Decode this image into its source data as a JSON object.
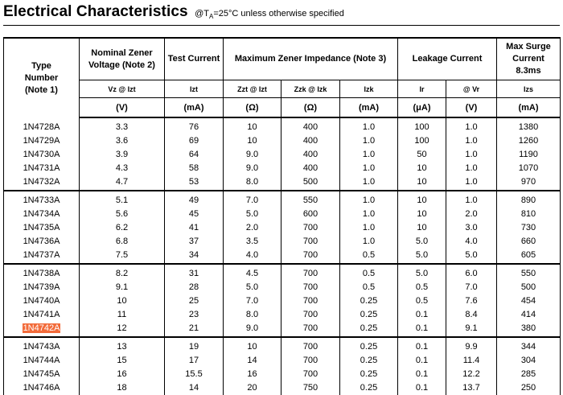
{
  "title": "Electrical Characteristics",
  "condition_prefix": "@T",
  "condition_sub": "A",
  "condition_suffix": "=25°C unless otherwise specified",
  "headers": {
    "type_line1": "Type",
    "type_line2": "Number",
    "type_line3": "(Note 1)",
    "nominal_line1": "Nominal Zener",
    "nominal_line2": "Voltage (Note 2)",
    "test_current": "Test Current",
    "impedance": "Maximum Zener Impedance (Note 3)",
    "leakage": "Leakage Current",
    "surge_line1": "Max Surge",
    "surge_line2": "Current",
    "surge_line3": "8.3ms"
  },
  "symbols": [
    "Vz @ Izt",
    "Izt",
    "Zzt @ Izt",
    "Zzk @ Izk",
    "Izk",
    "Ir",
    "@ Vr",
    "Izs"
  ],
  "units": [
    "(V)",
    "(mA)",
    "(Ω)",
    "(Ω)",
    "(mA)",
    "(μA)",
    "(V)",
    "(mA)"
  ],
  "highlighted_part": "1N4742A",
  "rows": [
    [
      "1N4728A",
      "3.3",
      "76",
      "10",
      "400",
      "1.0",
      "100",
      "1.0",
      "1380"
    ],
    [
      "1N4729A",
      "3.6",
      "69",
      "10",
      "400",
      "1.0",
      "100",
      "1.0",
      "1260"
    ],
    [
      "1N4730A",
      "3.9",
      "64",
      "9.0",
      "400",
      "1.0",
      "50",
      "1.0",
      "1190"
    ],
    [
      "1N4731A",
      "4.3",
      "58",
      "9.0",
      "400",
      "1.0",
      "10",
      "1.0",
      "1070"
    ],
    [
      "1N4732A",
      "4.7",
      "53",
      "8.0",
      "500",
      "1.0",
      "10",
      "1.0",
      "970"
    ],
    [
      "1N4733A",
      "5.1",
      "49",
      "7.0",
      "550",
      "1.0",
      "10",
      "1.0",
      "890"
    ],
    [
      "1N4734A",
      "5.6",
      "45",
      "5.0",
      "600",
      "1.0",
      "10",
      "2.0",
      "810"
    ],
    [
      "1N4735A",
      "6.2",
      "41",
      "2.0",
      "700",
      "1.0",
      "10",
      "3.0",
      "730"
    ],
    [
      "1N4736A",
      "6.8",
      "37",
      "3.5",
      "700",
      "1.0",
      "5.0",
      "4.0",
      "660"
    ],
    [
      "1N4737A",
      "7.5",
      "34",
      "4.0",
      "700",
      "0.5",
      "5.0",
      "5.0",
      "605"
    ],
    [
      "1N4738A",
      "8.2",
      "31",
      "4.5",
      "700",
      "0.5",
      "5.0",
      "6.0",
      "550"
    ],
    [
      "1N4739A",
      "9.1",
      "28",
      "5.0",
      "700",
      "0.5",
      "0.5",
      "7.0",
      "500"
    ],
    [
      "1N4740A",
      "10",
      "25",
      "7.0",
      "700",
      "0.25",
      "0.5",
      "7.6",
      "454"
    ],
    [
      "1N4741A",
      "11",
      "23",
      "8.0",
      "700",
      "0.25",
      "0.1",
      "8.4",
      "414"
    ],
    [
      "1N4742A",
      "12",
      "21",
      "9.0",
      "700",
      "0.25",
      "0.1",
      "9.1",
      "380"
    ],
    [
      "1N4743A",
      "13",
      "19",
      "10",
      "700",
      "0.25",
      "0.1",
      "9.9",
      "344"
    ],
    [
      "1N4744A",
      "15",
      "17",
      "14",
      "700",
      "0.25",
      "0.1",
      "11.4",
      "304"
    ],
    [
      "1N4745A",
      "16",
      "15.5",
      "16",
      "700",
      "0.25",
      "0.1",
      "12.2",
      "285"
    ],
    [
      "1N4746A",
      "18",
      "14",
      "20",
      "750",
      "0.25",
      "0.1",
      "13.7",
      "250"
    ]
  ],
  "highlight_color": "#f26b3a"
}
